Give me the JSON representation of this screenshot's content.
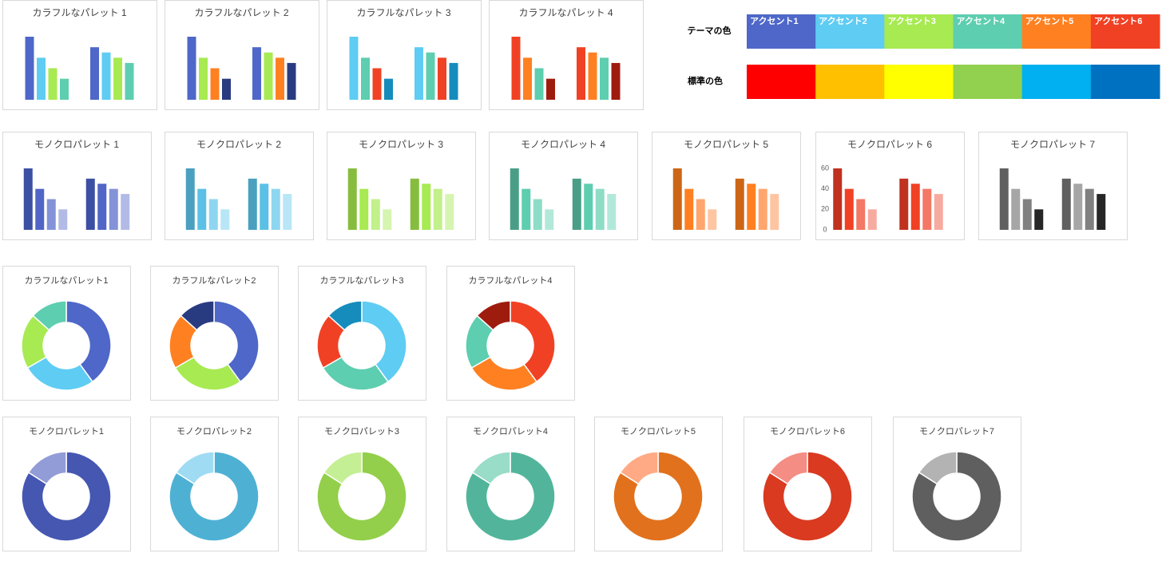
{
  "palette_panel": {
    "theme_label": "テーマの色",
    "standard_label": "標準の色",
    "accents": [
      {
        "name": "アクセント1",
        "color": "#4e67c8"
      },
      {
        "name": "アクセント2",
        "color": "#5eccf3"
      },
      {
        "name": "アクセント3",
        "color": "#a7ea52"
      },
      {
        "name": "アクセント4",
        "color": "#5dceaf"
      },
      {
        "name": "アクセント5",
        "color": "#ff8021"
      },
      {
        "name": "アクセント6",
        "color": "#f14124"
      }
    ],
    "standard_colors": [
      "#ff0000",
      "#ffc000",
      "#ffff00",
      "#92d050",
      "#00b0f0",
      "#0070c0"
    ]
  },
  "chart_data": [
    {
      "type": "bar",
      "title": "カラフルなパレット 1",
      "categories": [
        null,
        null
      ],
      "ylim": [
        0,
        60
      ],
      "series": [
        {
          "color": "#4e67c8",
          "values": [
            60,
            50
          ]
        },
        {
          "color": "#5eccf3",
          "values": [
            40,
            45
          ]
        },
        {
          "color": "#a7ea52",
          "values": [
            30,
            40
          ]
        },
        {
          "color": "#5dceaf",
          "values": [
            20,
            35
          ]
        }
      ]
    },
    {
      "type": "bar",
      "title": "カラフルなパレット 2",
      "categories": [
        null,
        null
      ],
      "ylim": [
        0,
        60
      ],
      "series": [
        {
          "color": "#4e67c8",
          "values": [
            60,
            50
          ]
        },
        {
          "color": "#a7ea52",
          "values": [
            40,
            45
          ]
        },
        {
          "color": "#ff8021",
          "values": [
            30,
            40
          ]
        },
        {
          "color": "#293b80",
          "values": [
            20,
            35
          ]
        }
      ]
    },
    {
      "type": "bar",
      "title": "カラフルなパレット 3",
      "categories": [
        null,
        null
      ],
      "ylim": [
        0,
        60
      ],
      "series": [
        {
          "color": "#5eccf3",
          "values": [
            60,
            50
          ]
        },
        {
          "color": "#5dceaf",
          "values": [
            40,
            45
          ]
        },
        {
          "color": "#f14124",
          "values": [
            30,
            40
          ]
        },
        {
          "color": "#168cbc",
          "values": [
            20,
            35
          ]
        }
      ]
    },
    {
      "type": "bar",
      "title": "カラフルなパレット 4",
      "categories": [
        null,
        null
      ],
      "ylim": [
        0,
        60
      ],
      "series": [
        {
          "color": "#f14124",
          "values": [
            60,
            50
          ]
        },
        {
          "color": "#ff8021",
          "values": [
            40,
            45
          ]
        },
        {
          "color": "#5dceaf",
          "values": [
            30,
            40
          ]
        },
        {
          "color": "#9e1c0e",
          "values": [
            20,
            35
          ]
        }
      ]
    },
    {
      "type": "bar",
      "title": "モノクロパレット 1",
      "categories": [
        null,
        null
      ],
      "ylim": [
        0,
        60
      ],
      "series": [
        {
          "color": "#3b4fa3",
          "values": [
            60,
            50
          ]
        },
        {
          "color": "#5065c6",
          "values": [
            40,
            45
          ]
        },
        {
          "color": "#8493d8",
          "values": [
            30,
            40
          ]
        },
        {
          "color": "#b2bbe6",
          "values": [
            20,
            35
          ]
        }
      ]
    },
    {
      "type": "bar",
      "title": "モノクロパレット 2",
      "categories": [
        null,
        null
      ],
      "ylim": [
        0,
        60
      ],
      "series": [
        {
          "color": "#4aa0bf",
          "values": [
            60,
            50
          ]
        },
        {
          "color": "#5bc0e6",
          "values": [
            40,
            45
          ]
        },
        {
          "color": "#8ed6f0",
          "values": [
            30,
            40
          ]
        },
        {
          "color": "#b8e6f6",
          "values": [
            20,
            35
          ]
        }
      ]
    },
    {
      "type": "bar",
      "title": "モノクロパレット 3",
      "categories": [
        null,
        null
      ],
      "ylim": [
        0,
        60
      ],
      "series": [
        {
          "color": "#86bd3e",
          "values": [
            60,
            50
          ]
        },
        {
          "color": "#a7ea52",
          "values": [
            40,
            45
          ]
        },
        {
          "color": "#c2f08a",
          "values": [
            30,
            40
          ]
        },
        {
          "color": "#d6f5b1",
          "values": [
            20,
            35
          ]
        }
      ]
    },
    {
      "type": "bar",
      "title": "モノクロパレット 4",
      "categories": [
        null,
        null
      ],
      "ylim": [
        0,
        60
      ],
      "series": [
        {
          "color": "#4a9e87",
          "values": [
            60,
            50
          ]
        },
        {
          "color": "#5dceaf",
          "values": [
            40,
            45
          ]
        },
        {
          "color": "#8edcc6",
          "values": [
            30,
            40
          ]
        },
        {
          "color": "#b2e8d9",
          "values": [
            20,
            35
          ]
        }
      ]
    },
    {
      "type": "bar",
      "title": "モノクロパレット 5",
      "categories": [
        null,
        null
      ],
      "ylim": [
        0,
        60
      ],
      "series": [
        {
          "color": "#cc6616",
          "values": [
            60,
            50
          ]
        },
        {
          "color": "#ff8021",
          "values": [
            40,
            45
          ]
        },
        {
          "color": "#ffa66e",
          "values": [
            30,
            40
          ]
        },
        {
          "color": "#ffc5a3",
          "values": [
            20,
            35
          ]
        }
      ]
    },
    {
      "type": "bar",
      "title": "モノクロパレット 6",
      "categories": [
        null,
        null
      ],
      "ylim": [
        0,
        60
      ],
      "yticks": [
        0,
        20,
        40,
        60
      ],
      "series": [
        {
          "color": "#c0321f",
          "values": [
            60,
            50
          ]
        },
        {
          "color": "#f14124",
          "values": [
            40,
            45
          ]
        },
        {
          "color": "#f47866",
          "values": [
            30,
            40
          ]
        },
        {
          "color": "#f7aba0",
          "values": [
            20,
            35
          ]
        }
      ]
    },
    {
      "type": "bar",
      "title": "モノクロパレット 7",
      "categories": [
        null,
        null
      ],
      "ylim": [
        0,
        60
      ],
      "series": [
        {
          "color": "#606060",
          "values": [
            60,
            50
          ]
        },
        {
          "color": "#a6a6a6",
          "values": [
            40,
            45
          ]
        },
        {
          "color": "#808080",
          "values": [
            30,
            40
          ]
        },
        {
          "color": "#262626",
          "values": [
            20,
            35
          ]
        }
      ]
    },
    {
      "type": "donut",
      "title": "カラフルなパレット1",
      "values": [
        60,
        40,
        30,
        20
      ],
      "colors": [
        "#4e67c8",
        "#5eccf3",
        "#a7ea52",
        "#5dceaf"
      ]
    },
    {
      "type": "donut",
      "title": "カラフルなパレット2",
      "values": [
        60,
        40,
        30,
        20
      ],
      "colors": [
        "#4e67c8",
        "#a7ea52",
        "#ff8021",
        "#293b80"
      ]
    },
    {
      "type": "donut",
      "title": "カラフルなパレット3",
      "values": [
        60,
        40,
        30,
        20
      ],
      "colors": [
        "#5eccf3",
        "#5dceaf",
        "#f14124",
        "#168cbc"
      ]
    },
    {
      "type": "donut",
      "title": "カラフルなパレット4",
      "values": [
        60,
        40,
        30,
        20
      ],
      "colors": [
        "#f14124",
        "#ff8021",
        "#5dceaf",
        "#9e1c0e"
      ]
    },
    {
      "type": "donut",
      "title": "モノクロパレット1",
      "values": [
        84,
        16
      ],
      "colors": [
        "#4557b1",
        "#929cd7"
      ]
    },
    {
      "type": "donut",
      "title": "モノクロパレット2",
      "values": [
        84,
        16
      ],
      "colors": [
        "#4eb1d4",
        "#9fdcf3"
      ]
    },
    {
      "type": "donut",
      "title": "モノクロパレット3",
      "values": [
        84,
        16
      ],
      "colors": [
        "#93cf4a",
        "#c5ef95"
      ]
    },
    {
      "type": "donut",
      "title": "モノクロパレット4",
      "values": [
        84,
        16
      ],
      "colors": [
        "#52b59b",
        "#99dcc8"
      ]
    },
    {
      "type": "donut",
      "title": "モノクロパレット5",
      "values": [
        84,
        16
      ],
      "colors": [
        "#e1711c",
        "#ffaa84"
      ]
    },
    {
      "type": "donut",
      "title": "モノクロパレット6",
      "values": [
        84,
        16
      ],
      "colors": [
        "#d93a20",
        "#f48d83"
      ]
    },
    {
      "type": "donut",
      "title": "モノクロパレット7",
      "values": [
        84,
        16
      ],
      "colors": [
        "#5f5f5f",
        "#b3b3b3"
      ]
    }
  ]
}
